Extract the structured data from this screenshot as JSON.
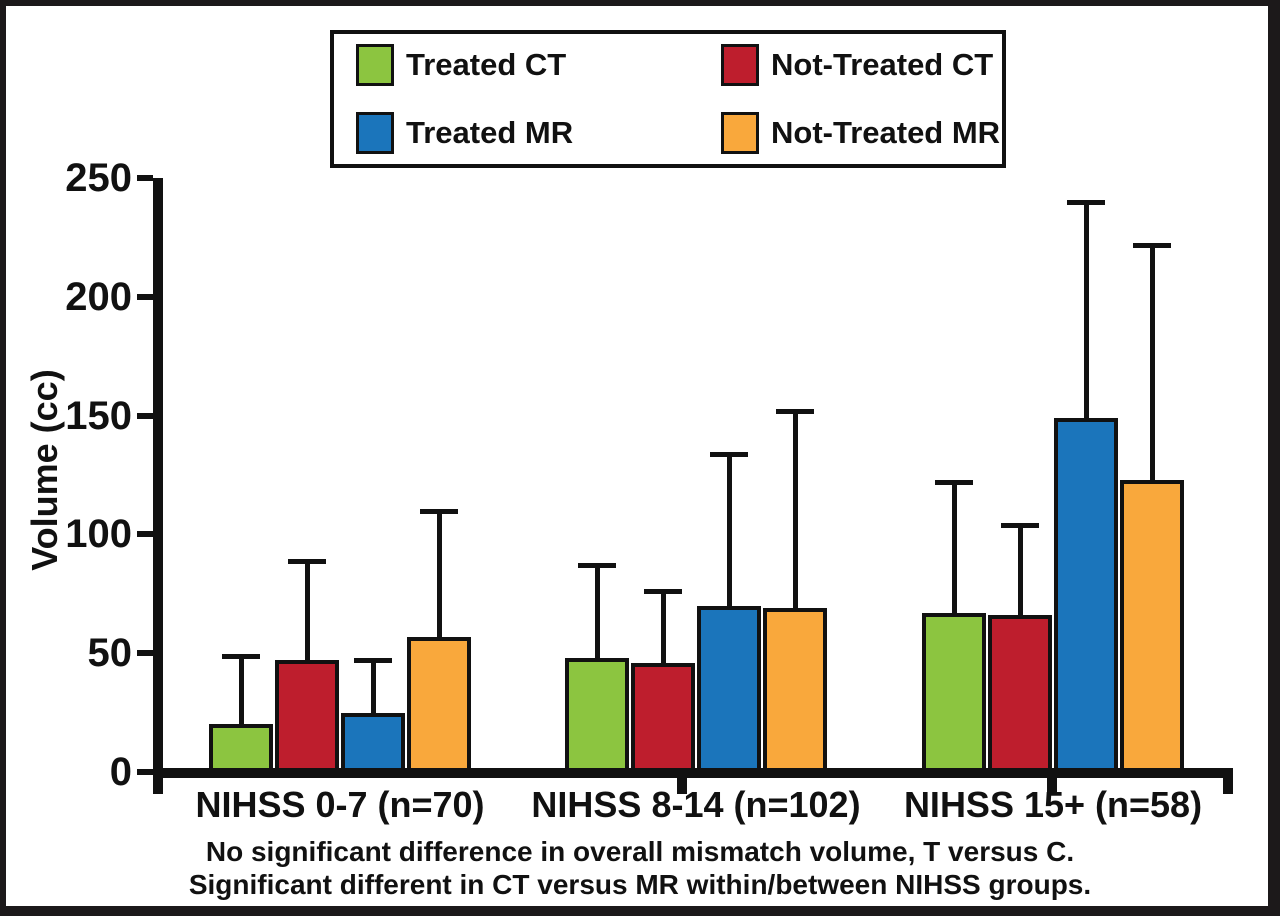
{
  "caption": {
    "line1": "No significant difference in overall mismatch volume, T versus C.",
    "line2": "Significant different in CT versus MR within/between NIHSS groups."
  },
  "chart_data": {
    "type": "bar",
    "title": "",
    "xlabel": "",
    "ylabel": "Volume (cc)",
    "ylim": [
      0,
      250
    ],
    "yticks": [
      0,
      50,
      100,
      150,
      200,
      250
    ],
    "grid": false,
    "legend_position": "top-center",
    "error_bars": "upper-only",
    "categories": [
      "NIHSS 0-7 (n=70)",
      "NIHSS 8-14 (n=102)",
      "NIHSS 15+ (n=58)"
    ],
    "series": [
      {
        "name": "Treated CT",
        "color": "#8CC540",
        "values": [
          20,
          48,
          67
        ],
        "error_upper": [
          29,
          39,
          55
        ]
      },
      {
        "name": "Not-Treated CT",
        "color": "#BE1E2D",
        "values": [
          47,
          46,
          66
        ],
        "error_upper": [
          42,
          30,
          38
        ]
      },
      {
        "name": "Treated MR",
        "color": "#1B75BB",
        "values": [
          25,
          70,
          149
        ],
        "error_upper": [
          22,
          64,
          91
        ]
      },
      {
        "name": "Not-Treated MR",
        "color": "#F9A83C",
        "values": [
          57,
          69,
          123
        ],
        "error_upper": [
          53,
          83,
          99
        ]
      }
    ]
  }
}
